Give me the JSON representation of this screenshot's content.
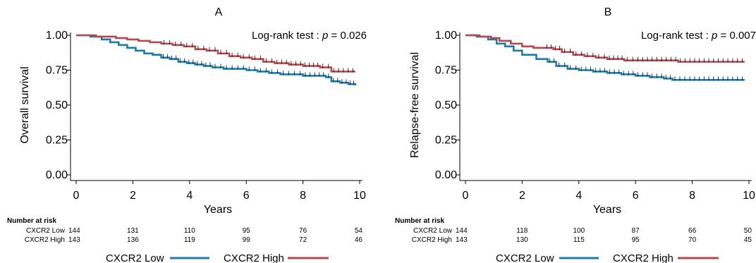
{
  "chart_data": [
    {
      "type": "line",
      "panel_label": "A",
      "annotation": "Log-rank test : p = 0.026",
      "annotation_prefix": "Log-rank test : ",
      "annotation_p": "p",
      "annotation_suffix": " = 0.026",
      "ylabel": "Overall survival",
      "xlabel": "Years",
      "xlim": [
        0,
        10
      ],
      "ylim": [
        0,
        1
      ],
      "x_ticks": [
        "0",
        "2",
        "4",
        "6",
        "8",
        "10"
      ],
      "y_ticks": [
        "0.00",
        "0.25",
        "0.50",
        "0.75",
        "1.00"
      ],
      "series": [
        {
          "name": "CXCR2 Low",
          "color": "#1f7ba6",
          "x": [
            0,
            0.5,
            0.9,
            1.2,
            1.5,
            1.8,
            2.1,
            2.4,
            2.7,
            3.0,
            3.3,
            3.6,
            3.9,
            4.2,
            4.5,
            4.8,
            5.2,
            5.6,
            6.0,
            6.4,
            6.8,
            7.2,
            7.6,
            8.0,
            8.5,
            8.8,
            9.0,
            9.3,
            9.6,
            9.85
          ],
          "y": [
            1.0,
            0.99,
            0.97,
            0.95,
            0.93,
            0.91,
            0.89,
            0.87,
            0.86,
            0.84,
            0.83,
            0.81,
            0.8,
            0.79,
            0.78,
            0.77,
            0.76,
            0.76,
            0.75,
            0.74,
            0.73,
            0.72,
            0.72,
            0.71,
            0.71,
            0.7,
            0.67,
            0.66,
            0.65,
            0.64
          ]
        },
        {
          "name": "CXCR2 High",
          "color": "#b24a50",
          "x": [
            0,
            0.7,
            1.0,
            1.4,
            1.8,
            2.2,
            2.6,
            3.0,
            3.4,
            3.8,
            4.2,
            4.6,
            5.0,
            5.4,
            5.8,
            6.2,
            6.6,
            7.0,
            7.5,
            8.0,
            8.6,
            9.0,
            9.85
          ],
          "y": [
            1.0,
            0.99,
            0.99,
            0.98,
            0.97,
            0.96,
            0.95,
            0.94,
            0.93,
            0.92,
            0.9,
            0.89,
            0.87,
            0.85,
            0.84,
            0.83,
            0.81,
            0.8,
            0.79,
            0.78,
            0.77,
            0.74,
            0.74
          ]
        }
      ],
      "legend": [
        "CXCR2 Low",
        "CXCR2 High"
      ],
      "risk_table": {
        "title": "Number at risk",
        "rows": [
          {
            "label": "CXCR2 Low",
            "values": [
              "144",
              "131",
              "110",
              "95",
              "76",
              "54"
            ]
          },
          {
            "label": "CXCR2 High",
            "values": [
              "143",
              "136",
              "119",
              "99",
              "72",
              "46"
            ]
          }
        ]
      }
    },
    {
      "type": "line",
      "panel_label": "B",
      "annotation": "Log-rank test : p = 0.007",
      "annotation_prefix": "Log-rank test : ",
      "annotation_p": "p",
      "annotation_suffix": " = 0.007",
      "ylabel": "Relapse-free survival",
      "xlabel": "Years",
      "xlim": [
        0,
        10
      ],
      "ylim": [
        0,
        1
      ],
      "x_ticks": [
        "0",
        "2",
        "4",
        "6",
        "8",
        "10"
      ],
      "y_ticks": [
        "0.00",
        "0.25",
        "0.50",
        "0.75",
        "1.00"
      ],
      "series": [
        {
          "name": "CXCR2 Low",
          "color": "#1f7ba6",
          "x": [
            0,
            0.4,
            0.8,
            1.1,
            1.4,
            1.7,
            2.0,
            2.5,
            2.9,
            3.2,
            3.6,
            4.0,
            4.5,
            5.0,
            5.5,
            6.0,
            6.5,
            7.0,
            7.3,
            8.0,
            9.0,
            9.85
          ],
          "y": [
            1.0,
            0.99,
            0.97,
            0.94,
            0.92,
            0.89,
            0.86,
            0.83,
            0.81,
            0.78,
            0.76,
            0.75,
            0.74,
            0.73,
            0.72,
            0.71,
            0.7,
            0.69,
            0.68,
            0.68,
            0.68,
            0.68
          ]
        },
        {
          "name": "CXCR2 High",
          "color": "#b24a50",
          "x": [
            0,
            0.5,
            0.9,
            1.2,
            1.6,
            2.0,
            2.4,
            2.8,
            3.1,
            3.4,
            3.8,
            4.2,
            4.6,
            5.0,
            5.6,
            6.0,
            7.0,
            7.5,
            8.0,
            9.0,
            9.85
          ],
          "y": [
            1.0,
            0.99,
            0.98,
            0.96,
            0.94,
            0.92,
            0.91,
            0.91,
            0.9,
            0.88,
            0.86,
            0.85,
            0.84,
            0.83,
            0.82,
            0.82,
            0.82,
            0.81,
            0.81,
            0.81,
            0.81
          ]
        }
      ],
      "legend": [
        "CXCR2 Low",
        "CXCR2 High"
      ],
      "risk_table": {
        "title": "Number at risk",
        "rows": [
          {
            "label": "CXCR2 Low",
            "values": [
              "144",
              "118",
              "100",
              "87",
              "66",
              "50"
            ]
          },
          {
            "label": "CXCR2 High",
            "values": [
              "143",
              "130",
              "115",
              "95",
              "70",
              "45"
            ]
          }
        ]
      }
    }
  ]
}
